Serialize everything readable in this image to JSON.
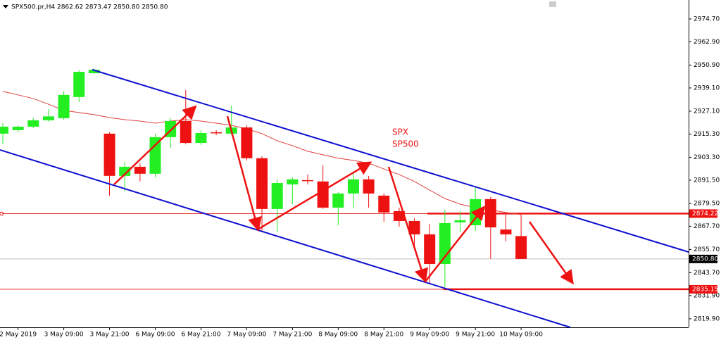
{
  "chart_data": {
    "type": "candlestick",
    "title": "SPX500.pr,H4  2862.62 2873.47 2850.80 2850.80",
    "categories": [
      null,
      "2 May 2019",
      null,
      null,
      "3 May 09:00",
      null,
      null,
      "3 May 21:00",
      null,
      null,
      "6 May 09:00",
      null,
      null,
      "6 May 21:00",
      null,
      null,
      "7 May 09:00",
      null,
      null,
      "7 May 21:00",
      null,
      null,
      "8 May 09:00",
      null,
      null,
      "8 May 21:00",
      null,
      null,
      "9 May 09:00",
      null,
      null,
      "9 May 21:00",
      null,
      null,
      "10 May 09:00"
    ],
    "open": [
      2915.5,
      2917.3,
      2919.1,
      2922.4,
      2923.5,
      2934.4,
      2946.7,
      2915.5,
      2893.7,
      2898.4,
      2894.8,
      2913.7,
      2922.0,
      2910.7,
      2916.2,
      2915.5,
      2918.7,
      2902.8,
      2876.6,
      2889.3,
      2891.5,
      2890.8,
      2877.3,
      2884.6,
      2891.9,
      2883.5,
      2875.5,
      2870.4,
      2863.5,
      2848.2,
      2869.7,
      2868.2,
      2881.7,
      2866.0,
      2862.62
    ],
    "high": [
      2920.9,
      2919.8,
      2923.5,
      2928.2,
      2937.3,
      2948.2,
      2949.3,
      2916.2,
      2900.9,
      2900.2,
      2915.5,
      2923.5,
      2938.0,
      2917.3,
      2917.3,
      2930.0,
      2919.8,
      2903.8,
      2891.9,
      2893.0,
      2894.4,
      2899.1,
      2885.3,
      2895.5,
      2893.7,
      2884.6,
      2877.3,
      2871.9,
      2869.0,
      2876.2,
      2875.5,
      2888.2,
      2882.8,
      2873.7,
      2873.47
    ],
    "low": [
      2910.0,
      2916.2,
      2918.4,
      2921.7,
      2922.7,
      2931.8,
      2946.4,
      2883.5,
      2885.7,
      2890.8,
      2893.0,
      2908.2,
      2910.0,
      2909.7,
      2914.7,
      2914.7,
      2901.7,
      2864.6,
      2864.6,
      2879.1,
      2889.3,
      2876.6,
      2868.2,
      2877.0,
      2877.3,
      2870.0,
      2867.5,
      2855.5,
      2838.4,
      2836.3,
      2864.6,
      2865.3,
      2850.8,
      2859.9,
      2850.8
    ],
    "close": [
      2919.1,
      2919.1,
      2922.4,
      2924.4,
      2935.5,
      2947.4,
      2948.5,
      2893.7,
      2898.4,
      2894.8,
      2913.7,
      2922.0,
      2910.7,
      2915.8,
      2916.0,
      2918.7,
      2902.8,
      2876.6,
      2890.0,
      2891.9,
      2891.2,
      2877.3,
      2884.6,
      2891.9,
      2884.6,
      2874.8,
      2870.4,
      2863.5,
      2848.2,
      2869.3,
      2870.8,
      2881.7,
      2867.1,
      2863.5,
      2850.8
    ],
    "up_color": "#22ee22",
    "down_color": "#ee1111",
    "ma": {
      "color": "#e04040",
      "values": [
        2937.3,
        2935.5,
        2933.6,
        2930.7,
        2927.5,
        2926.4,
        2925.3,
        2923.8,
        2922.7,
        2922.0,
        2920.9,
        2922.0,
        2922.7,
        2922.0,
        2920.9,
        2919.8,
        2918.0,
        2915.5,
        2911.8,
        2909.3,
        2906.4,
        2904.6,
        2902.8,
        2901.7,
        2900.2,
        2897.3,
        2894.4,
        2890.8,
        2886.4,
        2882.0,
        2879.1,
        2877.3,
        2876.2,
        2874.8,
        2873.7
      ]
    },
    "ylim": [
      2815.5,
      2984.5
    ],
    "yticks": [
      {
        "value": 2974.7,
        "label": "2974.70"
      },
      {
        "value": 2962.9,
        "label": "2962.90"
      },
      {
        "value": 2950.9,
        "label": "2950.90"
      },
      {
        "value": 2939.1,
        "label": "2939.10"
      },
      {
        "value": 2927.1,
        "label": "2927.10"
      },
      {
        "value": 2915.3,
        "label": "2915.30"
      },
      {
        "value": 2903.3,
        "label": "2903.30"
      },
      {
        "value": 2891.5,
        "label": "2891.50"
      },
      {
        "value": 2879.5,
        "label": "2879.50"
      },
      {
        "value": 2867.7,
        "label": "2867.70"
      },
      {
        "value": 2855.7,
        "label": "2855.70"
      },
      {
        "value": 2843.7,
        "label": "2843.70"
      },
      {
        "value": 2831.9,
        "label": "2831.90"
      },
      {
        "value": 2819.9,
        "label": "2819.90"
      }
    ],
    "levels": [
      {
        "value": 2874.22,
        "label": "2874.22",
        "color": "#ee1111"
      },
      {
        "value": 2850.8,
        "label": "2850.80",
        "color": "#000000"
      },
      {
        "value": 2835.15,
        "label": "2835.15",
        "color": "#ee1111"
      }
    ],
    "annotations": [
      "SPX",
      "SP500"
    ]
  }
}
